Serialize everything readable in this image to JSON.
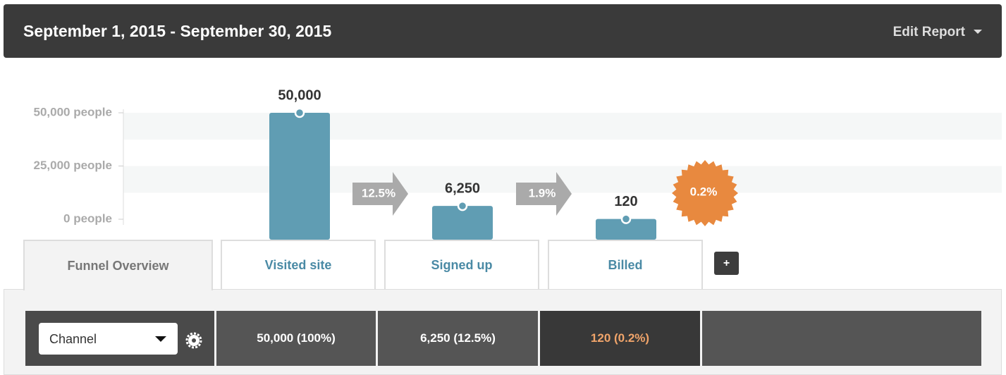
{
  "header": {
    "title": "September 1, 2015 - September 30, 2015",
    "action": "Edit Report"
  },
  "chart_data": {
    "type": "bar",
    "categories": [
      "Visited site",
      "Signed up",
      "Billed"
    ],
    "values": [
      50000,
      6250,
      120
    ],
    "value_labels": [
      "50,000",
      "6,250",
      "120"
    ],
    "conversions": [
      "12.5%",
      "1.9%",
      "0.2%"
    ],
    "color": "#609db3",
    "ylim": [
      0,
      50000
    ],
    "yticks": [
      {
        "value": 0,
        "label": "0 people"
      },
      {
        "value": 25000,
        "label": "25,000 people"
      },
      {
        "value": 50000,
        "label": "50,000 people"
      }
    ],
    "grid": true
  },
  "tabs": {
    "overview": "Funnel Overview",
    "add": "+"
  },
  "table": {
    "filter": "Channel",
    "cells": [
      "50,000 (100%)",
      "6,250 (12.5%)",
      "120 (0.2%)"
    ]
  }
}
